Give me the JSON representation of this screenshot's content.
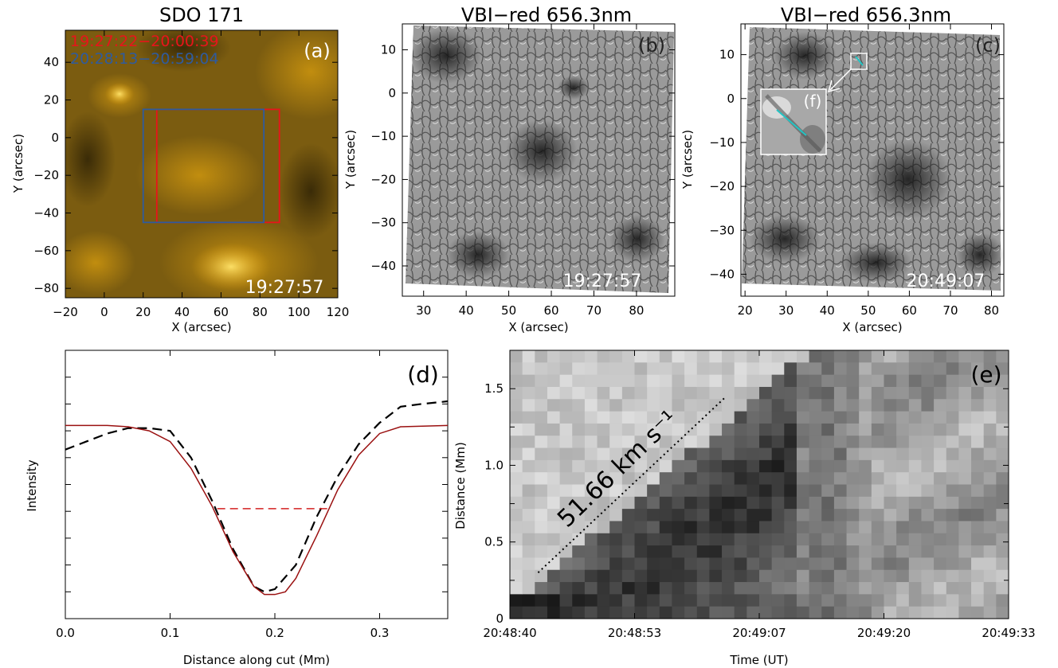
{
  "panels": {
    "a": {
      "title": "SDO 171",
      "label": "(a)",
      "timestamp": "19:27:57",
      "legend": [
        {
          "text": "19:27:22−20:00:39",
          "color": "#e8141b"
        },
        {
          "text": "20:28:13−20:59:04",
          "color": "#2f5b9e"
        }
      ],
      "xlabel": "X (arcsec)",
      "ylabel": "Y (arcsec)",
      "xticks": [
        "−20",
        "0",
        "20",
        "40",
        "60",
        "80",
        "100",
        "120"
      ],
      "yticks": [
        "40",
        "20",
        "0",
        "−20",
        "−40",
        "−60",
        "−80"
      ],
      "xlim": [
        -20,
        120
      ],
      "ylim": [
        -85,
        57
      ],
      "boxes": [
        {
          "color": "#e8141b",
          "x": [
            27,
            90
          ],
          "y": [
            -45,
            15
          ]
        },
        {
          "color": "#2f5b9e",
          "x": [
            20,
            82
          ],
          "y": [
            -45,
            15
          ]
        }
      ]
    },
    "b": {
      "title": "VBI−red 656.3nm",
      "label": "(b)",
      "timestamp": "19:27:57",
      "xlabel": "X (arcsec)",
      "ylabel": "Y (arcsec)",
      "xticks": [
        "30",
        "40",
        "50",
        "60",
        "70",
        "80"
      ],
      "yticks": [
        "10",
        "0",
        "−10",
        "−20",
        "−30",
        "−40"
      ],
      "xlim": [
        25,
        89
      ],
      "ylim": [
        -47,
        16
      ]
    },
    "c": {
      "title": "VBI−red 656.3nm",
      "label": "(c)",
      "inset_label": "(f)",
      "timestamp": "20:49:07",
      "xlabel": "X (arcsec)",
      "ylabel": "Y (arcsec)",
      "xticks": [
        "20",
        "30",
        "40",
        "50",
        "60",
        "70",
        "80"
      ],
      "yticks": [
        "10",
        "0",
        "−10",
        "−20",
        "−30",
        "−40"
      ],
      "xlim": [
        19,
        83
      ],
      "ylim": [
        -45,
        17
      ]
    },
    "d": {
      "label": "(d)",
      "xlabel": "Distance along cut (Mm)",
      "ylabel": "Intensity",
      "xticks": [
        "0.0",
        "0.1",
        "0.2",
        "0.3"
      ]
    },
    "e": {
      "label": "(e)",
      "annotation": "51.66 km s⁻¹",
      "xlabel": "Time (UT)",
      "ylabel": "Distance (Mm)",
      "xticks": [
        "20:48:40",
        "20:48:53",
        "20:49:07",
        "20:49:20",
        "20:49:33"
      ],
      "yticks": [
        "1.5",
        "1.0",
        "0.5",
        "0"
      ],
      "ylim": [
        0,
        1.75
      ]
    }
  },
  "chart_data": [
    {
      "type": "line",
      "panel": "d",
      "xlabel": "Distance along cut (Mm)",
      "ylabel": "Intensity",
      "xlim": [
        0,
        0.365
      ],
      "ylim": [
        0,
        1
      ],
      "series": [
        {
          "style": "dashed-black",
          "x": [
            0.0,
            0.02,
            0.04,
            0.06,
            0.08,
            0.1,
            0.12,
            0.14,
            0.16,
            0.18,
            0.19,
            0.2,
            0.22,
            0.24,
            0.26,
            0.28,
            0.3,
            0.32,
            0.34,
            0.365
          ],
          "y": [
            0.63,
            0.66,
            0.69,
            0.71,
            0.71,
            0.7,
            0.6,
            0.44,
            0.26,
            0.12,
            0.1,
            0.11,
            0.2,
            0.38,
            0.53,
            0.65,
            0.73,
            0.79,
            0.8,
            0.81
          ]
        },
        {
          "style": "solid-red",
          "x": [
            0.0,
            0.04,
            0.06,
            0.08,
            0.1,
            0.12,
            0.14,
            0.16,
            0.18,
            0.19,
            0.2,
            0.21,
            0.22,
            0.24,
            0.26,
            0.28,
            0.3,
            0.32,
            0.365
          ],
          "y": [
            0.72,
            0.72,
            0.715,
            0.7,
            0.66,
            0.56,
            0.42,
            0.25,
            0.12,
            0.09,
            0.09,
            0.1,
            0.15,
            0.31,
            0.48,
            0.61,
            0.69,
            0.715,
            0.72
          ]
        },
        {
          "style": "dashed-red",
          "x": [
            0.145,
            0.25
          ],
          "y": [
            0.41,
            0.41
          ]
        }
      ]
    },
    {
      "type": "heatmap",
      "panel": "e",
      "xlabel": "Time (UT)",
      "ylabel": "Distance (Mm)",
      "x_ticks": [
        "20:48:40",
        "20:48:53",
        "20:49:07",
        "20:49:20",
        "20:49:33"
      ],
      "ylim": [
        0,
        1.75
      ],
      "fit_line": {
        "x": [
          "20:48:43",
          "20:49:03"
        ],
        "y": [
          0.3,
          1.45
        ],
        "label": "51.66 km s⁻¹"
      }
    }
  ]
}
